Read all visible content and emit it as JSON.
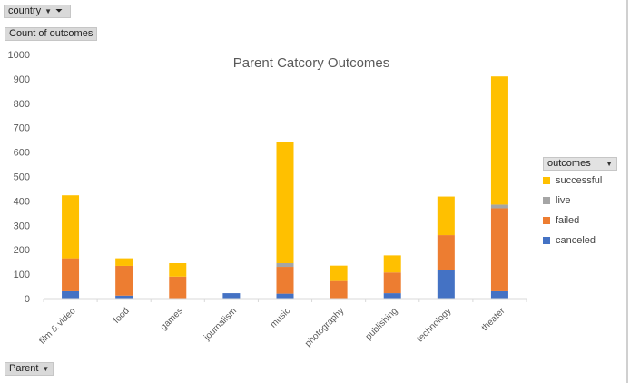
{
  "pivot": {
    "filter_label": "country",
    "value_field": "Count of outcomes",
    "axis_field": "Parent",
    "legend_field": "outcomes"
  },
  "chart_data": {
    "type": "bar",
    "stacked": true,
    "title": "Parent Catcory Outcomes",
    "xlabel": "",
    "ylabel": "",
    "ylim": [
      0,
      1000
    ],
    "yticks": [
      0,
      100,
      200,
      300,
      400,
      500,
      600,
      700,
      800,
      900,
      1000
    ],
    "grid": false,
    "legend_position": "right",
    "categories": [
      "film & video",
      "food",
      "games",
      "journalism",
      "music",
      "photography",
      "publishing",
      "technology",
      "theater"
    ],
    "series": [
      {
        "name": "canceled",
        "color": "#4472c4",
        "values": [
          30,
          12,
          0,
          22,
          20,
          0,
          22,
          118,
          30
        ]
      },
      {
        "name": "failed",
        "color": "#ed7d31",
        "values": [
          135,
          122,
          90,
          0,
          110,
          72,
          85,
          142,
          340
        ]
      },
      {
        "name": "live",
        "color": "#a5a5a5",
        "values": [
          0,
          0,
          0,
          0,
          15,
          0,
          0,
          0,
          15
        ]
      },
      {
        "name": "successful",
        "color": "#ffc000",
        "values": [
          258,
          31,
          55,
          0,
          495,
          63,
          70,
          158,
          525
        ]
      }
    ],
    "legend_order": [
      "successful",
      "live",
      "failed",
      "canceled"
    ]
  }
}
